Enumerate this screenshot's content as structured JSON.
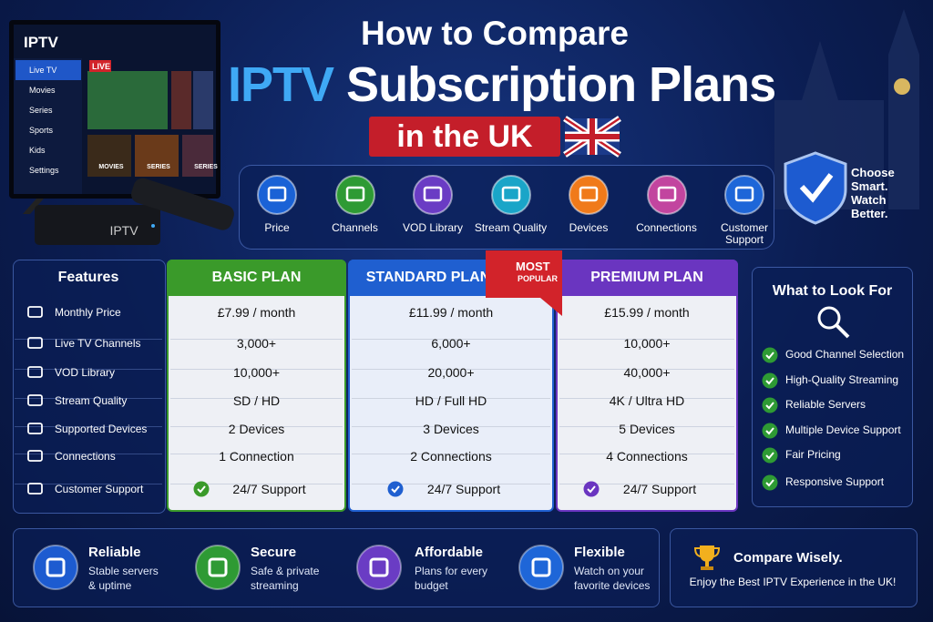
{
  "header": {
    "line1": "How to Compare",
    "highlight": "IPTV",
    "line2": "Subscription Plans",
    "line3": "in the UK"
  },
  "tv": {
    "brand": "IPTV",
    "menu": [
      "Live TV",
      "Movies",
      "Series",
      "Sports",
      "Kids",
      "Settings"
    ],
    "live": "LIVE",
    "tiles": [
      "MOVIES",
      "SERIES",
      "SERIES"
    ],
    "box": "IPTV"
  },
  "criteria": [
    "Price",
    "Channels",
    "VOD Library",
    "Stream Quality",
    "Devices",
    "Connections",
    "Customer Support"
  ],
  "tagline": "Choose Smart. Watch Better.",
  "table": {
    "features_title": "Features",
    "features": [
      "Monthly Price",
      "Live TV Channels",
      "VOD Library",
      "Stream Quality",
      "Supported Devices",
      "Connections",
      "Customer Support"
    ],
    "badge": {
      "top": "MOST",
      "bottom": "POPULAR"
    },
    "plans": [
      {
        "name": "BASIC PLAN",
        "values": [
          "£7.99 / month",
          "3,000+",
          "10,000+",
          "SD / HD",
          "2 Devices",
          "1 Connection",
          "24/7 Support"
        ]
      },
      {
        "name": "STANDARD PLAN",
        "values": [
          "£11.99 / month",
          "6,000+",
          "20,000+",
          "HD / Full HD",
          "3 Devices",
          "2 Connections",
          "24/7 Support"
        ]
      },
      {
        "name": "PREMIUM PLAN",
        "values": [
          "£15.99 / month",
          "10,000+",
          "40,000+",
          "4K / Ultra HD",
          "5 Devices",
          "4 Connections",
          "24/7 Support"
        ]
      }
    ]
  },
  "look_for": {
    "title": "What to Look For",
    "items": [
      "Good Channel Selection",
      "High-Quality Streaming",
      "Reliable Servers",
      "Multiple Device Support",
      "Fair Pricing",
      "Responsive Support"
    ]
  },
  "benefits": [
    {
      "title": "Reliable",
      "text": "Stable servers & uptime"
    },
    {
      "title": "Secure",
      "text": "Safe & private streaming"
    },
    {
      "title": "Affordable",
      "text": "Plans for every budget"
    },
    {
      "title": "Flexible",
      "text": "Watch on your favorite devices"
    }
  ],
  "compare": {
    "title": "Compare Wisely.",
    "text": "Enjoy the Best IPTV Experience in the UK!"
  }
}
